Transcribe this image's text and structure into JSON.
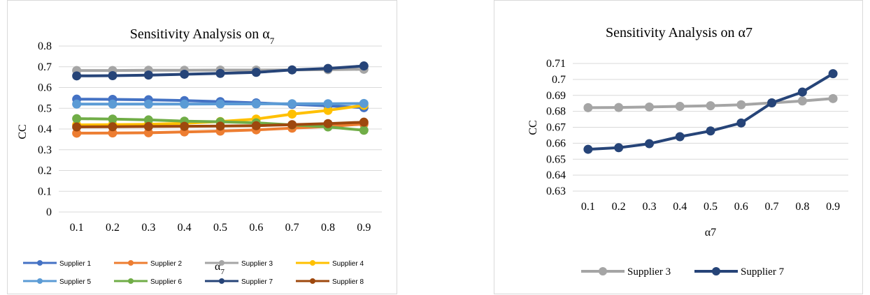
{
  "chart_data": [
    {
      "type": "line",
      "title": "Sensitivity Analysis on α",
      "title_subscript": "7",
      "xlabel": "α",
      "xlabel_subscript": "7",
      "ylabel": "CC",
      "categories": [
        "0.1",
        "0.2",
        "0.3",
        "0.4",
        "0.5",
        "0.6",
        "0.7",
        "0.8",
        "0.9"
      ],
      "ylim": [
        0,
        0.8
      ],
      "yticks": [
        "0",
        "0.1",
        "0.2",
        "0.3",
        "0.4",
        "0.5",
        "0.6",
        "0.7",
        "0.8"
      ],
      "grid": true,
      "legend_position": "bottom",
      "series": [
        {
          "name": "Supplier 1",
          "color": "#4472c4",
          "values": [
            0.544,
            0.543,
            0.541,
            0.537,
            0.532,
            0.526,
            0.519,
            0.512,
            0.503
          ]
        },
        {
          "name": "Supplier 2",
          "color": "#ed7d31",
          "values": [
            0.38,
            0.381,
            0.382,
            0.386,
            0.39,
            0.396,
            0.404,
            0.412,
            0.424
          ]
        },
        {
          "name": "Supplier 3",
          "color": "#a5a5a5",
          "values": [
            0.682,
            0.682,
            0.683,
            0.683,
            0.684,
            0.684,
            0.685,
            0.686,
            0.688
          ]
        },
        {
          "name": "Supplier 4",
          "color": "#ffc000",
          "values": [
            0.42,
            0.421,
            0.423,
            0.428,
            0.436,
            0.448,
            0.472,
            0.49,
            0.514
          ]
        },
        {
          "name": "Supplier 5",
          "color": "#5b9bd5",
          "values": [
            0.52,
            0.52,
            0.52,
            0.52,
            0.521,
            0.521,
            0.522,
            0.522,
            0.523
          ]
        },
        {
          "name": "Supplier 6",
          "color": "#70ad47",
          "values": [
            0.45,
            0.448,
            0.444,
            0.438,
            0.435,
            0.43,
            0.42,
            0.41,
            0.394
          ]
        },
        {
          "name": "Supplier 7",
          "color": "#264478",
          "values": [
            0.656,
            0.657,
            0.66,
            0.664,
            0.668,
            0.673,
            0.685,
            0.692,
            0.704
          ]
        },
        {
          "name": "Supplier 8",
          "color": "#9e480e",
          "values": [
            0.41,
            0.411,
            0.412,
            0.413,
            0.414,
            0.416,
            0.421,
            0.426,
            0.433
          ]
        }
      ]
    },
    {
      "type": "line",
      "title": "Sensitivity Analysis on α7",
      "xlabel": "α7",
      "ylabel": "CC",
      "categories": [
        "0.1",
        "0.2",
        "0.3",
        "0.4",
        "0.5",
        "0.6",
        "0.7",
        "0.8",
        "0.9"
      ],
      "ylim": [
        0.63,
        0.71
      ],
      "yticks": [
        "0.63",
        "0.64",
        "0.65",
        "0.66",
        "0.67",
        "0.68",
        "0.69",
        "0.7",
        "0.71"
      ],
      "grid": true,
      "legend_position": "bottom",
      "series": [
        {
          "name": "Supplier 3",
          "color": "#a5a5a5",
          "values": [
            0.6823,
            0.6824,
            0.6827,
            0.6831,
            0.6835,
            0.6841,
            0.6853,
            0.6865,
            0.688
          ]
        },
        {
          "name": "Supplier 7",
          "color": "#264478",
          "values": [
            0.6562,
            0.6572,
            0.6597,
            0.6641,
            0.6677,
            0.6727,
            0.6853,
            0.6921,
            0.7036
          ]
        }
      ]
    }
  ]
}
